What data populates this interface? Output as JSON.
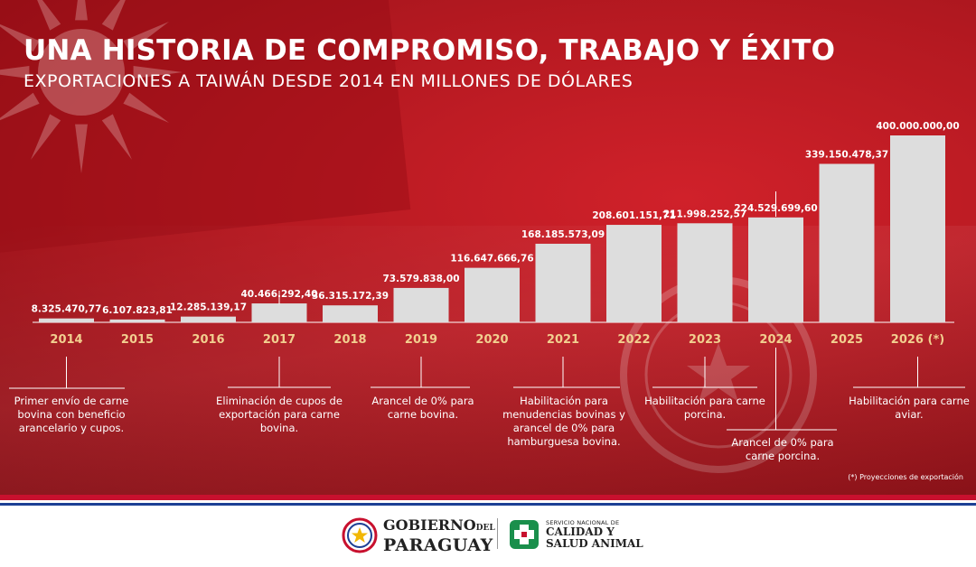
{
  "header": {
    "title": "UNA HISTORIA DE COMPROMISO, TRABAJO Y ÉXITO",
    "subtitle": "EXPORTACIONES A TAIWÁN DESDE 2014 EN MILLONES DE DÓLARES"
  },
  "chart_data": {
    "type": "bar",
    "title": "UNA HISTORIA DE COMPROMISO, TRABAJO Y ÉXITO",
    "subtitle": "EXPORTACIONES A TAIWÁN DESDE 2014 EN MILLONES DE DÓLARES",
    "categories": [
      "2014",
      "2015",
      "2016",
      "2017",
      "2018",
      "2019",
      "2020",
      "2021",
      "2022",
      "2023",
      "2024",
      "2025",
      "2026 (*)"
    ],
    "values": [
      8325470.77,
      6107823.81,
      12285139.17,
      40466292.4,
      36315172.39,
      73579838.0,
      116647666.76,
      168185573.09,
      208601151.71,
      211998252.57,
      224529699.6,
      339150478.37,
      400000000.0
    ],
    "value_labels": [
      "8.325.470,77",
      "6.107.823,81",
      "12.285.139,17",
      "40.466.292,40",
      "36.315.172,39",
      "73.579.838,00",
      "116.647.666,76",
      "168.185.573,09",
      "208.601.151,71",
      "211.998.252,57",
      "224.529.699,60",
      "339.150.478,37",
      "400.000.000,00"
    ],
    "ylim": [
      0,
      400000000
    ],
    "grid": false,
    "bar_color": "#dddddd",
    "year_color": "#f2cf8f"
  },
  "milestones": [
    {
      "year": "2014",
      "text": "Primer envío de carne bovina con beneficio arancelario y cupos."
    },
    {
      "year": "2017",
      "text": "Eliminación de cupos de exportación para carne bovina."
    },
    {
      "year": "2019",
      "text": "Arancel de 0% para carne bovina."
    },
    {
      "year": "2021",
      "text": "Habilitación para menudencias bovinas y arancel de 0% para hamburguesa bovina."
    },
    {
      "year": "2023",
      "text": "Habilitación para carne porcina."
    },
    {
      "year": "2024",
      "text": "Arancel de 0% para carne porcina."
    },
    {
      "year": "2026 (*)",
      "text": "Habilitación para carne aviar."
    }
  ],
  "footnote": "(*) Proyecciones de exportación",
  "footer": {
    "gov_line1_a": "GOBIERNO",
    "gov_line1_b": "DEL",
    "gov_line2": "PARAGUAY",
    "senacsa_line1": "SERVICIO NACIONAL DE",
    "senacsa_line2": "CALIDAD Y",
    "senacsa_line3": "SALUD ANIMAL"
  },
  "colors": {
    "background_red": "#b51921",
    "flag_red": "#c8102e",
    "flag_blue": "#1c3f94",
    "bar": "#dddddd",
    "year_label": "#f2cf8f"
  }
}
